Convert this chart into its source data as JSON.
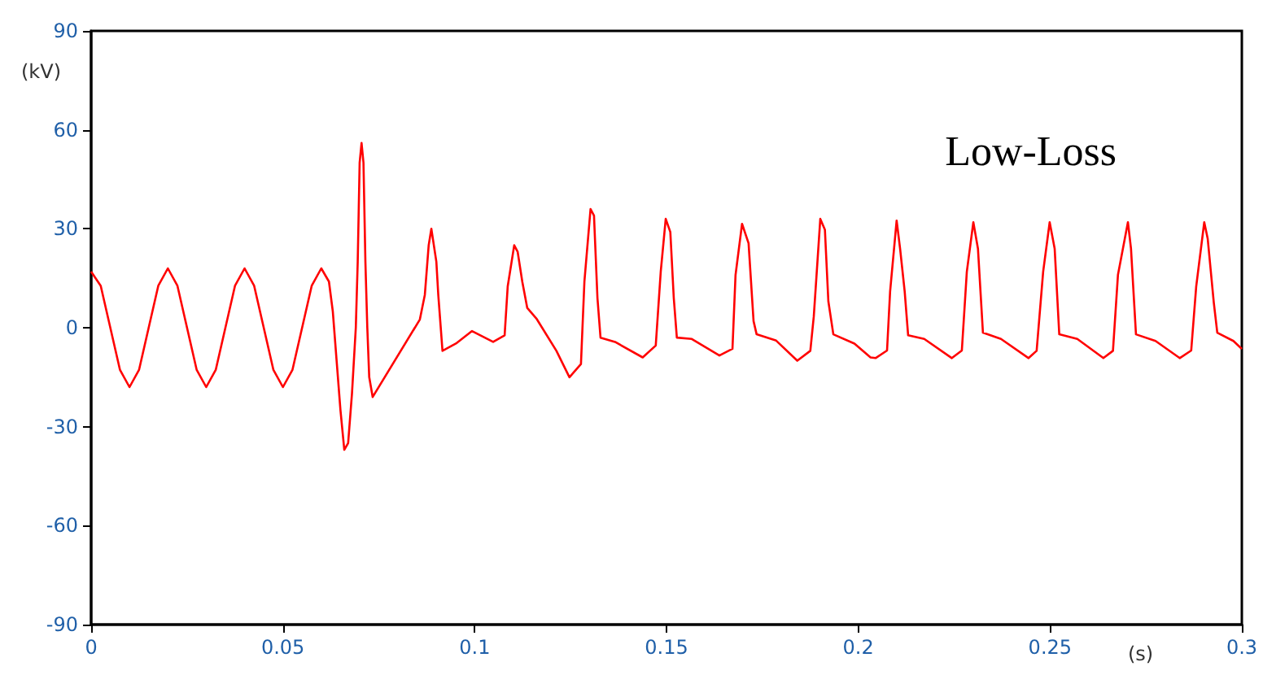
{
  "chart_data": {
    "type": "line",
    "xlabel": "(s)",
    "ylabel": "(kV)",
    "annotations": [
      "Low-Loss"
    ],
    "x": [
      0,
      0.0025,
      0.005,
      0.0075,
      0.01,
      0.0125,
      0.015,
      0.0175,
      0.02,
      0.0225,
      0.025,
      0.0275,
      0.03,
      0.0325,
      0.035,
      0.0375,
      0.04,
      0.0425,
      0.045,
      0.0475,
      0.05,
      0.0525,
      0.055,
      0.0575,
      0.06,
      0.062,
      0.063,
      0.064,
      0.065,
      0.066,
      0.067,
      0.068,
      0.069,
      0.0695,
      0.07,
      0.0705,
      0.071,
      0.0715,
      0.072,
      0.0725,
      0.0734,
      0.0857,
      0.087,
      0.088,
      0.0887,
      0.09,
      0.0905,
      0.0916,
      0.0951,
      0.0993,
      0.1048,
      0.1078,
      0.1086,
      0.1103,
      0.1112,
      0.1124,
      0.1137,
      0.1162,
      0.1213,
      0.1247,
      0.1277,
      0.1286,
      0.1302,
      0.1311,
      0.132,
      0.1328,
      0.1366,
      0.1438,
      0.1472,
      0.1485,
      0.1498,
      0.151,
      0.1519,
      0.1527,
      0.1566,
      0.1638,
      0.1672,
      0.168,
      0.1697,
      0.1714,
      0.1727,
      0.1735,
      0.1786,
      0.1841,
      0.1875,
      0.1884,
      0.1901,
      0.1913,
      0.1922,
      0.1935,
      0.199,
      0.2032,
      0.2045,
      0.2075,
      0.2083,
      0.21,
      0.2109,
      0.2121,
      0.213,
      0.2172,
      0.2244,
      0.227,
      0.2283,
      0.23,
      0.2312,
      0.2325,
      0.2372,
      0.2444,
      0.2465,
      0.2482,
      0.2499,
      0.2512,
      0.2524,
      0.2571,
      0.2639,
      0.2664,
      0.2677,
      0.2703,
      0.2711,
      0.2724,
      0.2775,
      0.2838,
      0.2868,
      0.2881,
      0.2902,
      0.2911,
      0.2927,
      0.2936,
      0.2978,
      0.3
    ],
    "series": [
      {
        "color": "#ff0000",
        "values": [
          17,
          12.7,
          0,
          -12.7,
          -18,
          -12.7,
          0,
          12.7,
          18,
          12.7,
          0,
          -12.7,
          -18,
          -12.7,
          0,
          12.7,
          18,
          12.7,
          0,
          -12.7,
          -18,
          -12.7,
          0,
          12.7,
          18,
          14,
          5,
          -10,
          -25,
          -37,
          -35,
          -20,
          0,
          20,
          50,
          56,
          50,
          20,
          0,
          -15,
          -21,
          2.5,
          10,
          25,
          30,
          20,
          10,
          -7,
          -4.8,
          -1,
          -4.3,
          -2.3,
          12.5,
          25,
          23,
          14,
          6,
          2.6,
          -7,
          -15,
          -11,
          14,
          36,
          34,
          9,
          -3,
          -4.3,
          -9,
          -5.4,
          17,
          33,
          29,
          9,
          -3,
          -3.4,
          -8.4,
          -6.4,
          16,
          31.5,
          25.6,
          2,
          -2,
          -3.9,
          -10,
          -7,
          3.4,
          33,
          29.7,
          8,
          -2,
          -4.8,
          -9,
          -9.2,
          -6.9,
          11,
          32.5,
          24,
          11,
          -2.3,
          -3.4,
          -9.2,
          -6.9,
          17,
          32,
          24,
          -1.5,
          -3.4,
          -9.2,
          -7,
          17,
          32,
          24,
          -2,
          -3.4,
          -9.2,
          -7,
          16,
          32,
          24,
          -2,
          -4,
          -9.2,
          -6.9,
          12.5,
          32,
          27,
          7.5,
          -1.5,
          -4,
          -6.4
        ]
      }
    ],
    "xlim": [
      0,
      0.3
    ],
    "xticks": [
      0,
      0.05,
      0.1,
      0.15,
      0.2,
      0.25,
      0.3
    ],
    "ylim": [
      -90,
      90
    ],
    "yticks": [
      -90,
      -60,
      -30,
      0,
      30,
      60,
      90
    ],
    "grid": false,
    "marker": "none",
    "line_style": "solid"
  }
}
